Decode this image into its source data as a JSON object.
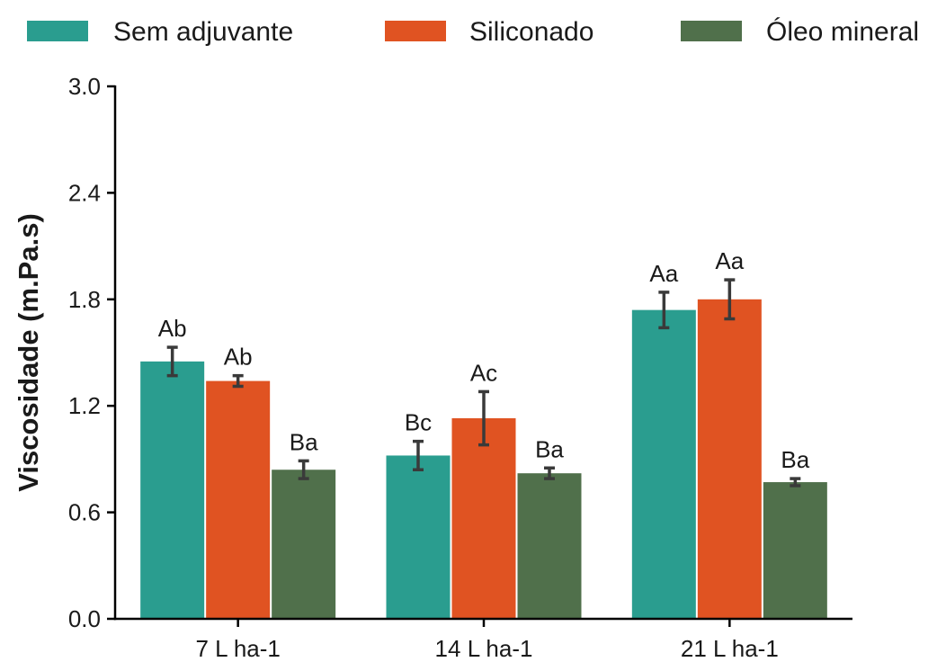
{
  "chart_data": {
    "type": "bar",
    "categories": [
      "7 L ha-1",
      "14 L ha-1",
      "21 L ha-1"
    ],
    "series": [
      {
        "name": "Sem adjuvante",
        "color": "#2a9d8f",
        "values": [
          1.45,
          0.92,
          1.74
        ],
        "errors": [
          0.08,
          0.08,
          0.1
        ],
        "labels": [
          "Ab",
          "Bc",
          "Aa"
        ]
      },
      {
        "name": "Siliconado",
        "color": "#e05322",
        "values": [
          1.34,
          1.13,
          1.8
        ],
        "errors": [
          0.03,
          0.15,
          0.11
        ],
        "labels": [
          "Ab",
          "Ac",
          "Aa"
        ]
      },
      {
        "name": "Óleo mineral",
        "color": "#50704b",
        "values": [
          0.84,
          0.82,
          0.77
        ],
        "errors": [
          0.05,
          0.03,
          0.02
        ],
        "labels": [
          "Ba",
          "Ba",
          "Ba"
        ]
      }
    ],
    "xlabel": "",
    "ylabel": "Viscosidade (m.Pa.s)",
    "ylim": [
      0,
      3.0
    ],
    "yticks": [
      "0.0",
      "0.6",
      "1.2",
      "1.8",
      "2.4",
      "3.0"
    ],
    "grid": false,
    "legend": "top"
  }
}
